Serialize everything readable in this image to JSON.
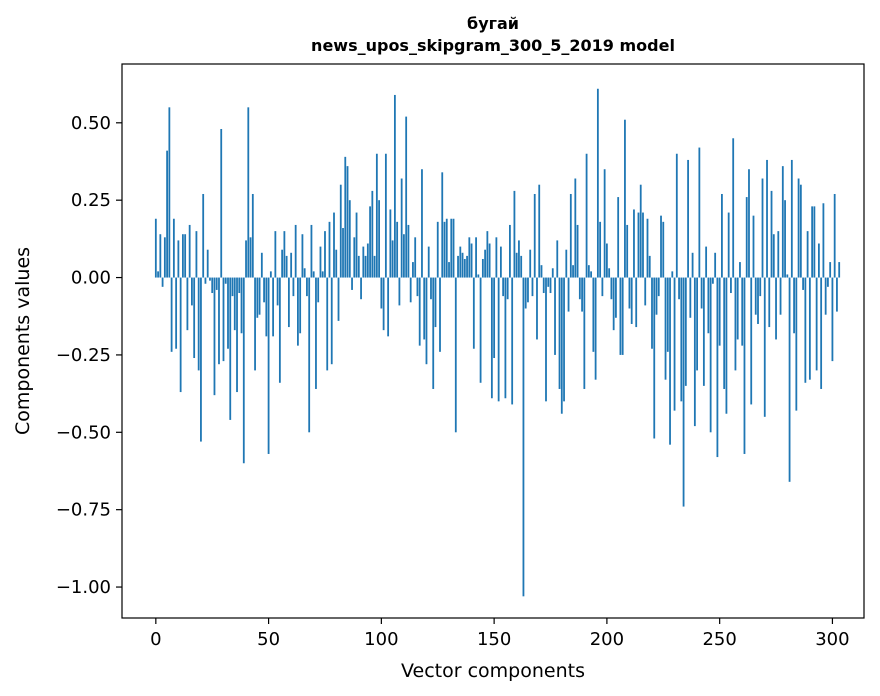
{
  "chart_data": {
    "type": "bar",
    "title_lines": [
      "бугай",
      "news_upos_skipgram_300_5_2019 model"
    ],
    "xlabel": "Vector components",
    "ylabel": "Components values",
    "xlim": [
      -15,
      314
    ],
    "ylim": [
      -1.1,
      0.69
    ],
    "xticks": [
      0,
      50,
      100,
      150,
      200,
      250,
      300
    ],
    "xtick_labels": [
      "0",
      "50",
      "100",
      "150",
      "200",
      "250",
      "300"
    ],
    "yticks": [
      0.5,
      0.25,
      0.0,
      -0.25,
      -0.5,
      -0.75,
      -1.0
    ],
    "ytick_labels": [
      "0.50",
      "0.25",
      "0.00",
      "−0.25",
      "−0.50",
      "−0.75",
      "−1.00"
    ],
    "bar_color": "#1f77b4",
    "x_start": 0,
    "values": [
      0.19,
      0.02,
      0.14,
      -0.03,
      0.13,
      0.41,
      0.55,
      -0.24,
      0.19,
      -0.23,
      0.12,
      -0.37,
      0.14,
      0.14,
      -0.17,
      0.17,
      -0.09,
      -0.26,
      0.15,
      -0.3,
      -0.53,
      0.27,
      -0.02,
      0.09,
      -0.01,
      -0.05,
      -0.38,
      -0.04,
      -0.28,
      0.48,
      -0.27,
      -0.02,
      -0.23,
      -0.46,
      -0.06,
      -0.17,
      -0.37,
      -0.05,
      -0.18,
      -0.6,
      0.12,
      0.55,
      0.13,
      0.27,
      -0.3,
      -0.13,
      -0.12,
      0.08,
      -0.08,
      -0.19,
      -0.57,
      0.02,
      -0.19,
      0.15,
      -0.09,
      -0.34,
      0.09,
      0.15,
      0.07,
      -0.16,
      0.08,
      -0.06,
      0.17,
      -0.22,
      -0.18,
      0.14,
      0.03,
      -0.06,
      -0.5,
      0.17,
      0.02,
      -0.36,
      -0.08,
      0.1,
      0.02,
      0.15,
      -0.3,
      0.18,
      -0.28,
      0.21,
      0.09,
      -0.14,
      0.3,
      0.16,
      0.39,
      0.36,
      0.25,
      -0.04,
      0.13,
      0.21,
      0.07,
      -0.07,
      0.1,
      0.07,
      0.11,
      0.23,
      0.28,
      0.07,
      0.4,
      0.25,
      -0.1,
      -0.17,
      0.4,
      -0.19,
      0.22,
      0.12,
      0.59,
      0.18,
      -0.09,
      0.32,
      0.14,
      0.52,
      0.17,
      -0.08,
      0.05,
      0.13,
      -0.06,
      -0.22,
      0.35,
      -0.2,
      -0.28,
      0.1,
      -0.07,
      -0.36,
      -0.16,
      0.18,
      -0.24,
      0.34,
      0.18,
      0.19,
      0.05,
      0.19,
      0.19,
      -0.5,
      0.07,
      0.1,
      0.08,
      0.06,
      0.07,
      0.13,
      0.11,
      -0.23,
      0.13,
      0.01,
      -0.34,
      0.06,
      0.09,
      0.15,
      0.11,
      -0.39,
      -0.26,
      0.13,
      -0.4,
      0.1,
      -0.06,
      -0.39,
      -0.07,
      0.17,
      -0.41,
      0.28,
      0.08,
      0.12,
      0.07,
      -1.03,
      -0.1,
      -0.08,
      0.09,
      -0.06,
      0.27,
      -0.2,
      0.3,
      0.04,
      -0.05,
      -0.4,
      -0.03,
      -0.05,
      0.03,
      -0.25,
      0.12,
      -0.36,
      -0.44,
      -0.4,
      0.09,
      -0.11,
      0.27,
      0.04,
      0.32,
      0.17,
      -0.07,
      -0.11,
      -0.36,
      0.4,
      0.04,
      0.02,
      -0.24,
      -0.33,
      0.61,
      0.18,
      -0.06,
      0.35,
      0.11,
      0.03,
      -0.07,
      -0.17,
      -0.13,
      0.26,
      -0.25,
      -0.25,
      0.51,
      0.17,
      -0.1,
      -0.15,
      0.22,
      -0.16,
      0.21,
      0.3,
      0.21,
      -0.09,
      0.19,
      0.07,
      -0.23,
      -0.52,
      -0.12,
      -0.06,
      0.2,
      0.18,
      -0.33,
      -0.24,
      -0.54,
      0.02,
      -0.43,
      0.4,
      -0.07,
      -0.4,
      -0.74,
      -0.35,
      0.38,
      -0.13,
      0.08,
      -0.48,
      -0.3,
      0.42,
      -0.1,
      -0.35,
      0.1,
      -0.18,
      -0.5,
      -0.02,
      0.08,
      -0.58,
      -0.22,
      0.27,
      -0.36,
      -0.44,
      0.21,
      -0.05,
      0.45,
      -0.3,
      -0.2,
      0.05,
      -0.22,
      -0.57,
      0.26,
      0.35,
      -0.41,
      0.2,
      -0.12,
      -0.15,
      -0.06,
      0.32,
      -0.45,
      0.38,
      -0.16,
      0.28,
      0.14,
      -0.2,
      0.15,
      -0.12,
      0.36,
      0.25,
      0.01,
      -0.66,
      0.38,
      -0.18,
      -0.43,
      0.32,
      0.3,
      -0.04,
      -0.34,
      0.15,
      -0.33,
      0.23,
      0.23,
      -0.3,
      0.11,
      -0.36,
      0.24,
      -0.12,
      -0.03,
      0.05,
      -0.27,
      0.27,
      -0.11,
      0.05
    ]
  }
}
